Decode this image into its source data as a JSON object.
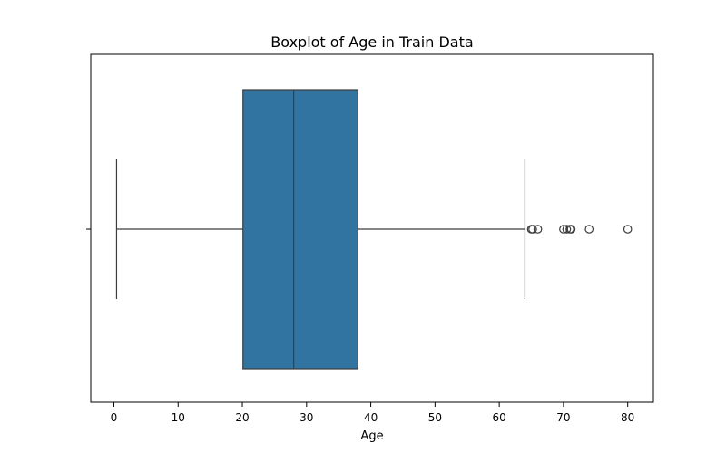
{
  "chart_data": {
    "type": "boxplot",
    "title": "Boxplot of Age in Train Data",
    "xlabel": "Age",
    "ylabel": "",
    "xlim": [
      -3.6,
      84.0
    ],
    "x_ticks": [
      0,
      10,
      20,
      30,
      40,
      50,
      60,
      70,
      80
    ],
    "grid": false,
    "orientation": "horizontal",
    "box": {
      "whisker_low": 0.42,
      "q1": 20.1,
      "median": 28.0,
      "q3": 38.0,
      "whisker_high": 64.0,
      "outliers": [
        65,
        65.2,
        66,
        70,
        70.5,
        71,
        71.2,
        74,
        80
      ]
    },
    "colors": {
      "box_fill": "#3274a1",
      "line": "#3d3d3d",
      "axis": "#000000"
    }
  }
}
